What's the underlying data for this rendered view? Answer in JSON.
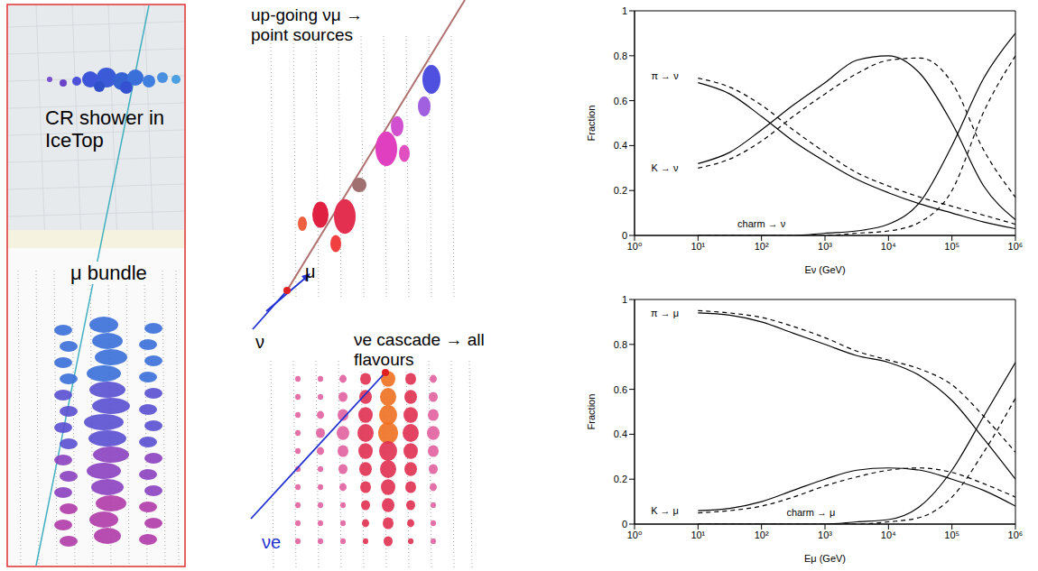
{
  "panels": {
    "cr_shower": "CR shower in IceTop",
    "bundle": "μ bundle",
    "upgoing": "up-going νμ → point sources",
    "upgoing_mu": "μ",
    "upgoing_nu": "ν",
    "cascade": "νe cascade → all flavours",
    "cascade_nu": "νe"
  },
  "chart_data": [
    {
      "type": "line",
      "log": "x",
      "grid": false,
      "xlabel": "Eν (GeV)",
      "ylabel": "Fraction",
      "x": [
        10,
        31.6,
        100,
        316,
        1000,
        3162,
        10000,
        31623,
        100000,
        316228,
        1000000
      ],
      "series": [
        {
          "name": "π → ν",
          "color": "#000000",
          "line_style": "solid",
          "values": [
            0.68,
            0.63,
            0.53,
            0.42,
            0.33,
            0.25,
            0.19,
            0.14,
            0.1,
            0.06,
            0.03
          ]
        },
        {
          "name": "π → ν",
          "color": "#000000",
          "line_style": "dashed",
          "values": [
            0.7,
            0.66,
            0.58,
            0.47,
            0.37,
            0.28,
            0.22,
            0.17,
            0.13,
            0.09,
            0.05
          ]
        },
        {
          "name": "K → ν",
          "color": "#000000",
          "line_style": "solid",
          "values": [
            0.32,
            0.37,
            0.47,
            0.58,
            0.68,
            0.78,
            0.8,
            0.72,
            0.5,
            0.22,
            0.07
          ]
        },
        {
          "name": "K → ν",
          "color": "#000000",
          "line_style": "dashed",
          "values": [
            0.3,
            0.34,
            0.42,
            0.53,
            0.63,
            0.72,
            0.78,
            0.79,
            0.68,
            0.38,
            0.17
          ]
        },
        {
          "name": "charm → ν",
          "color": "#000000",
          "line_style": "solid",
          "values": [
            0,
            0,
            0,
            0,
            0.01,
            0.02,
            0.05,
            0.15,
            0.4,
            0.7,
            0.9
          ]
        },
        {
          "name": "charm → ν",
          "color": "#000000",
          "line_style": "dashed",
          "values": [
            0,
            0,
            0,
            0,
            0,
            0.01,
            0.02,
            0.06,
            0.2,
            0.55,
            0.8
          ]
        }
      ],
      "xlim": [
        1,
        1000000
      ],
      "xticks": [
        {
          "value": 1,
          "label": "10⁰"
        },
        {
          "value": 10,
          "label": "10¹"
        },
        {
          "value": 100,
          "label": "10²"
        },
        {
          "value": 1000,
          "label": "10³"
        },
        {
          "value": 10000,
          "label": "10⁴"
        },
        {
          "value": 100000,
          "label": "10⁵"
        },
        {
          "value": 1000000,
          "label": "10⁶"
        }
      ],
      "ylim": [
        0,
        1
      ],
      "yticks": [
        0,
        0.2,
        0.4,
        0.6,
        0.8,
        1
      ],
      "annotations": [
        {
          "text": "π → ν",
          "x": 3,
          "y": 0.71
        },
        {
          "text": "K → ν",
          "x": 3,
          "y": 0.3
        },
        {
          "text": "charm → ν",
          "x": 100,
          "y": 0.05
        }
      ]
    },
    {
      "type": "line",
      "log": "x",
      "grid": false,
      "xlabel": "Eμ (GeV)",
      "ylabel": "Fraction",
      "x": [
        10,
        31.6,
        100,
        316,
        1000,
        3162,
        10000,
        31623,
        100000,
        316228,
        1000000
      ],
      "series": [
        {
          "name": "π → μ",
          "color": "#000000",
          "line_style": "solid",
          "values": [
            0.94,
            0.93,
            0.9,
            0.85,
            0.8,
            0.75,
            0.72,
            0.66,
            0.55,
            0.38,
            0.2
          ]
        },
        {
          "name": "π → μ",
          "color": "#000000",
          "line_style": "dashed",
          "values": [
            0.95,
            0.94,
            0.92,
            0.88,
            0.83,
            0.77,
            0.73,
            0.69,
            0.62,
            0.48,
            0.32
          ]
        },
        {
          "name": "K → μ",
          "color": "#000000",
          "line_style": "solid",
          "values": [
            0.06,
            0.07,
            0.1,
            0.15,
            0.2,
            0.24,
            0.25,
            0.24,
            0.2,
            0.15,
            0.08
          ]
        },
        {
          "name": "K → μ",
          "color": "#000000",
          "line_style": "dashed",
          "values": [
            0.05,
            0.06,
            0.08,
            0.12,
            0.17,
            0.21,
            0.24,
            0.25,
            0.23,
            0.18,
            0.12
          ]
        },
        {
          "name": "charm → μ",
          "color": "#000000",
          "line_style": "solid",
          "values": [
            0,
            0,
            0,
            0,
            0,
            0.01,
            0.02,
            0.08,
            0.24,
            0.48,
            0.72
          ]
        },
        {
          "name": "charm → μ",
          "color": "#000000",
          "line_style": "dashed",
          "values": [
            0,
            0,
            0,
            0,
            0,
            0,
            0.01,
            0.03,
            0.12,
            0.32,
            0.56
          ]
        }
      ],
      "xlim": [
        1,
        1000000
      ],
      "xticks": [
        {
          "value": 1,
          "label": "10⁰"
        },
        {
          "value": 10,
          "label": "10¹"
        },
        {
          "value": 100,
          "label": "10²"
        },
        {
          "value": 1000,
          "label": "10³"
        },
        {
          "value": 10000,
          "label": "10⁴"
        },
        {
          "value": 100000,
          "label": "10⁵"
        },
        {
          "value": 1000000,
          "label": "10⁶"
        }
      ],
      "ylim": [
        0,
        1
      ],
      "yticks": [
        0,
        0.2,
        0.4,
        0.6,
        0.8,
        1
      ],
      "annotations": [
        {
          "text": "π → μ",
          "x": 3,
          "y": 0.94
        },
        {
          "text": "K → μ",
          "x": 3,
          "y": 0.06
        },
        {
          "text": "charm → μ",
          "x": 600,
          "y": 0.05
        }
      ]
    }
  ]
}
